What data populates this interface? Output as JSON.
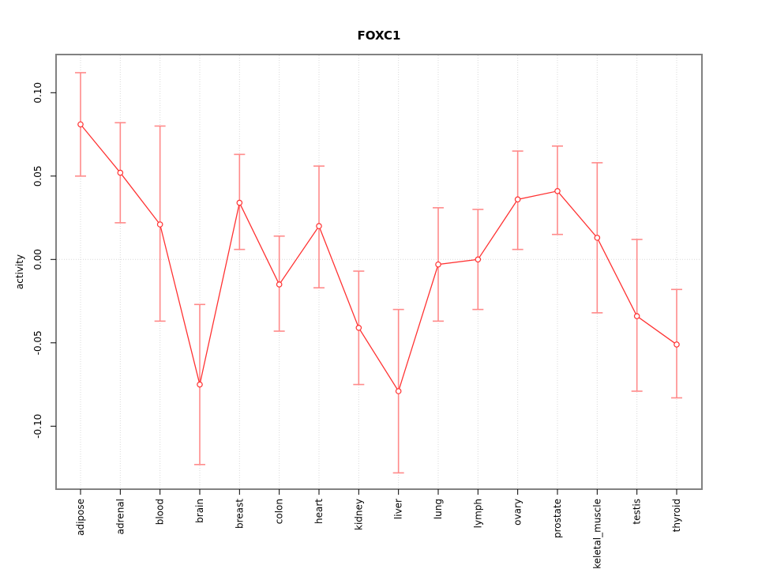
{
  "chart_data": {
    "type": "line",
    "title": "FOXC1",
    "ylabel": "activity",
    "xlabel": "",
    "categories": [
      "adipose",
      "adrenal",
      "blood",
      "brain",
      "breast",
      "colon",
      "heart",
      "kidney",
      "liver",
      "lung",
      "lymph",
      "ovary",
      "prostate",
      "skeletal_muscle",
      "testis",
      "thyroid"
    ],
    "series": [
      {
        "name": "activity",
        "marker": "open-circle",
        "values": [
          0.081,
          0.052,
          0.021,
          -0.075,
          0.034,
          -0.015,
          0.02,
          -0.041,
          -0.079,
          -0.003,
          0.0,
          0.036,
          0.041,
          0.013,
          -0.034,
          -0.051
        ],
        "error_lower": [
          0.05,
          0.022,
          -0.037,
          -0.123,
          0.006,
          -0.043,
          -0.017,
          -0.075,
          -0.128,
          -0.037,
          -0.03,
          0.006,
          0.015,
          -0.032,
          -0.079,
          -0.083
        ],
        "error_upper": [
          0.112,
          0.082,
          0.08,
          -0.027,
          0.063,
          0.014,
          0.056,
          -0.007,
          -0.03,
          0.031,
          0.03,
          0.065,
          0.068,
          0.058,
          0.012,
          -0.018
        ]
      }
    ],
    "yticks": [
      0.1,
      0.05,
      0.0,
      -0.05,
      -0.1
    ],
    "ytick_labels": [
      "0.10",
      "0.05",
      "0.00",
      "-0.05",
      "-0.10"
    ],
    "ylim": [
      -0.137,
      0.122
    ],
    "grid": "dotted vertical line per category and dotted horizontal line at y=0",
    "legend": "none",
    "tick_label_rotation": "vertical",
    "colors": {
      "line": "#ff3232",
      "error_bar": "#ff8a8a",
      "grid": "#d9d9d9",
      "border": "#818181",
      "text": "#000000",
      "background": "#ffffff"
    }
  }
}
